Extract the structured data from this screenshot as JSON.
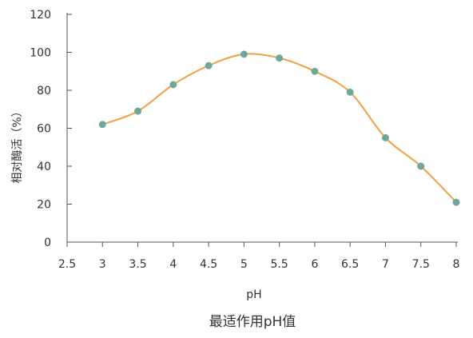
{
  "chart_data": {
    "type": "line",
    "title": "",
    "caption": "最适作用pH值",
    "xlabel": "pH",
    "ylabel": "相对酶活（%）",
    "xlim": [
      2.5,
      8
    ],
    "ylim": [
      0,
      120
    ],
    "x_ticks": [
      "2.5",
      "3",
      "3.5",
      "4",
      "4.5",
      "5",
      "5.5",
      "6",
      "6.5",
      "7",
      "7.5",
      "8"
    ],
    "y_ticks": [
      "0",
      "20",
      "40",
      "60",
      "80",
      "100",
      "120"
    ],
    "grid": false,
    "legend": "none",
    "smooth": true,
    "series": [
      {
        "x": [
          3,
          3.5,
          4,
          4.5,
          5,
          5.5,
          6,
          6.5,
          7,
          7.5,
          8
        ],
        "values": [
          62,
          69,
          83,
          93,
          99,
          97,
          90,
          79,
          55,
          40,
          21
        ]
      }
    ],
    "line_color": "#f0a040",
    "marker_color": "#6fa89a",
    "axis_color": "#555555"
  }
}
